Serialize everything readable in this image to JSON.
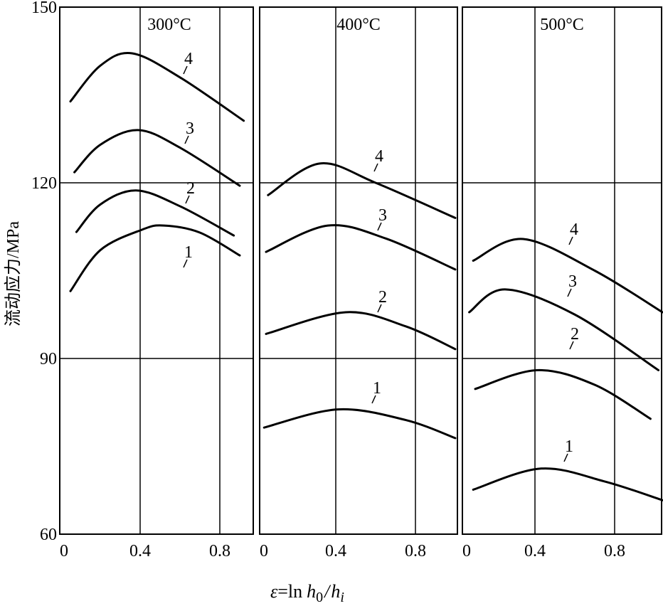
{
  "chart_data": {
    "type": "line",
    "ylabel": "流动应力/MPa",
    "xlabel": "ε̄ = ln h0 / hi",
    "xlabel_parts": {
      "eps": "ε",
      "eq": "=",
      "ln": "ln",
      "h": "h",
      "sub0": "0",
      "slash": "/",
      "h2": "h",
      "subi": "i"
    },
    "ylim": [
      60,
      150
    ],
    "yticks": [
      "60",
      "90",
      "120",
      "150"
    ],
    "ytick_values": [
      60,
      90,
      120,
      150
    ],
    "xticks": [
      "0",
      "0.4",
      "0.8"
    ],
    "xtick_values": [
      0,
      0.4,
      0.8
    ],
    "grid": true,
    "panels": [
      {
        "title": "300°C",
        "series": [
          {
            "name": "1",
            "points": [
              [
                0.05,
                101.5
              ],
              [
                0.2,
                108.5
              ],
              [
                0.41,
                112
              ],
              [
                0.52,
                112.7
              ],
              [
                0.7,
                111.5
              ],
              [
                0.9,
                107.6
              ]
            ]
          },
          {
            "name": "2",
            "points": [
              [
                0.08,
                111.6
              ],
              [
                0.2,
                116.3
              ],
              [
                0.38,
                118.7
              ],
              [
                0.6,
                116
              ],
              [
                0.87,
                111
              ]
            ]
          },
          {
            "name": "3",
            "points": [
              [
                0.07,
                121.8
              ],
              [
                0.2,
                126.5
              ],
              [
                0.39,
                129
              ],
              [
                0.6,
                126
              ],
              [
                0.9,
                119.5
              ]
            ]
          },
          {
            "name": "4",
            "points": [
              [
                0.05,
                133.9
              ],
              [
                0.2,
                140
              ],
              [
                0.36,
                142.1
              ],
              [
                0.6,
                138
              ],
              [
                0.92,
                130.6
              ]
            ]
          }
        ]
      },
      {
        "title": "400°C",
        "series": [
          {
            "name": "1",
            "points": [
              [
                0.04,
                78.2
              ],
              [
                0.41,
                81.3
              ],
              [
                0.75,
                79.5
              ],
              [
                1.0,
                76.4
              ]
            ]
          },
          {
            "name": "2",
            "points": [
              [
                0.05,
                94.2
              ],
              [
                0.45,
                97.9
              ],
              [
                0.75,
                95.5
              ],
              [
                1.0,
                91.6
              ]
            ]
          },
          {
            "name": "3",
            "points": [
              [
                0.05,
                108.2
              ],
              [
                0.36,
                112.7
              ],
              [
                0.65,
                110.5
              ],
              [
                1.0,
                105.2
              ]
            ]
          },
          {
            "name": "4",
            "points": [
              [
                0.06,
                117.9
              ],
              [
                0.32,
                123.3
              ],
              [
                0.6,
                120
              ],
              [
                1.0,
                114
              ]
            ]
          }
        ]
      },
      {
        "title": "500°C",
        "series": [
          {
            "name": "1",
            "points": [
              [
                0.09,
                67.6
              ],
              [
                0.43,
                71.2
              ],
              [
                0.75,
                69
              ],
              [
                1.04,
                65.8
              ]
            ]
          },
          {
            "name": "2",
            "points": [
              [
                0.1,
                84.8
              ],
              [
                0.41,
                88
              ],
              [
                0.7,
                85.5
              ],
              [
                0.98,
                79.7
              ]
            ]
          },
          {
            "name": "3",
            "points": [
              [
                0.07,
                97.9
              ],
              [
                0.25,
                101.8
              ],
              [
                0.6,
                97.5
              ],
              [
                1.02,
                88
              ]
            ]
          },
          {
            "name": "4",
            "points": [
              [
                0.09,
                106.7
              ],
              [
                0.34,
                110.4
              ],
              [
                0.7,
                105
              ],
              [
                1.04,
                97.9
              ]
            ]
          }
        ]
      }
    ]
  }
}
